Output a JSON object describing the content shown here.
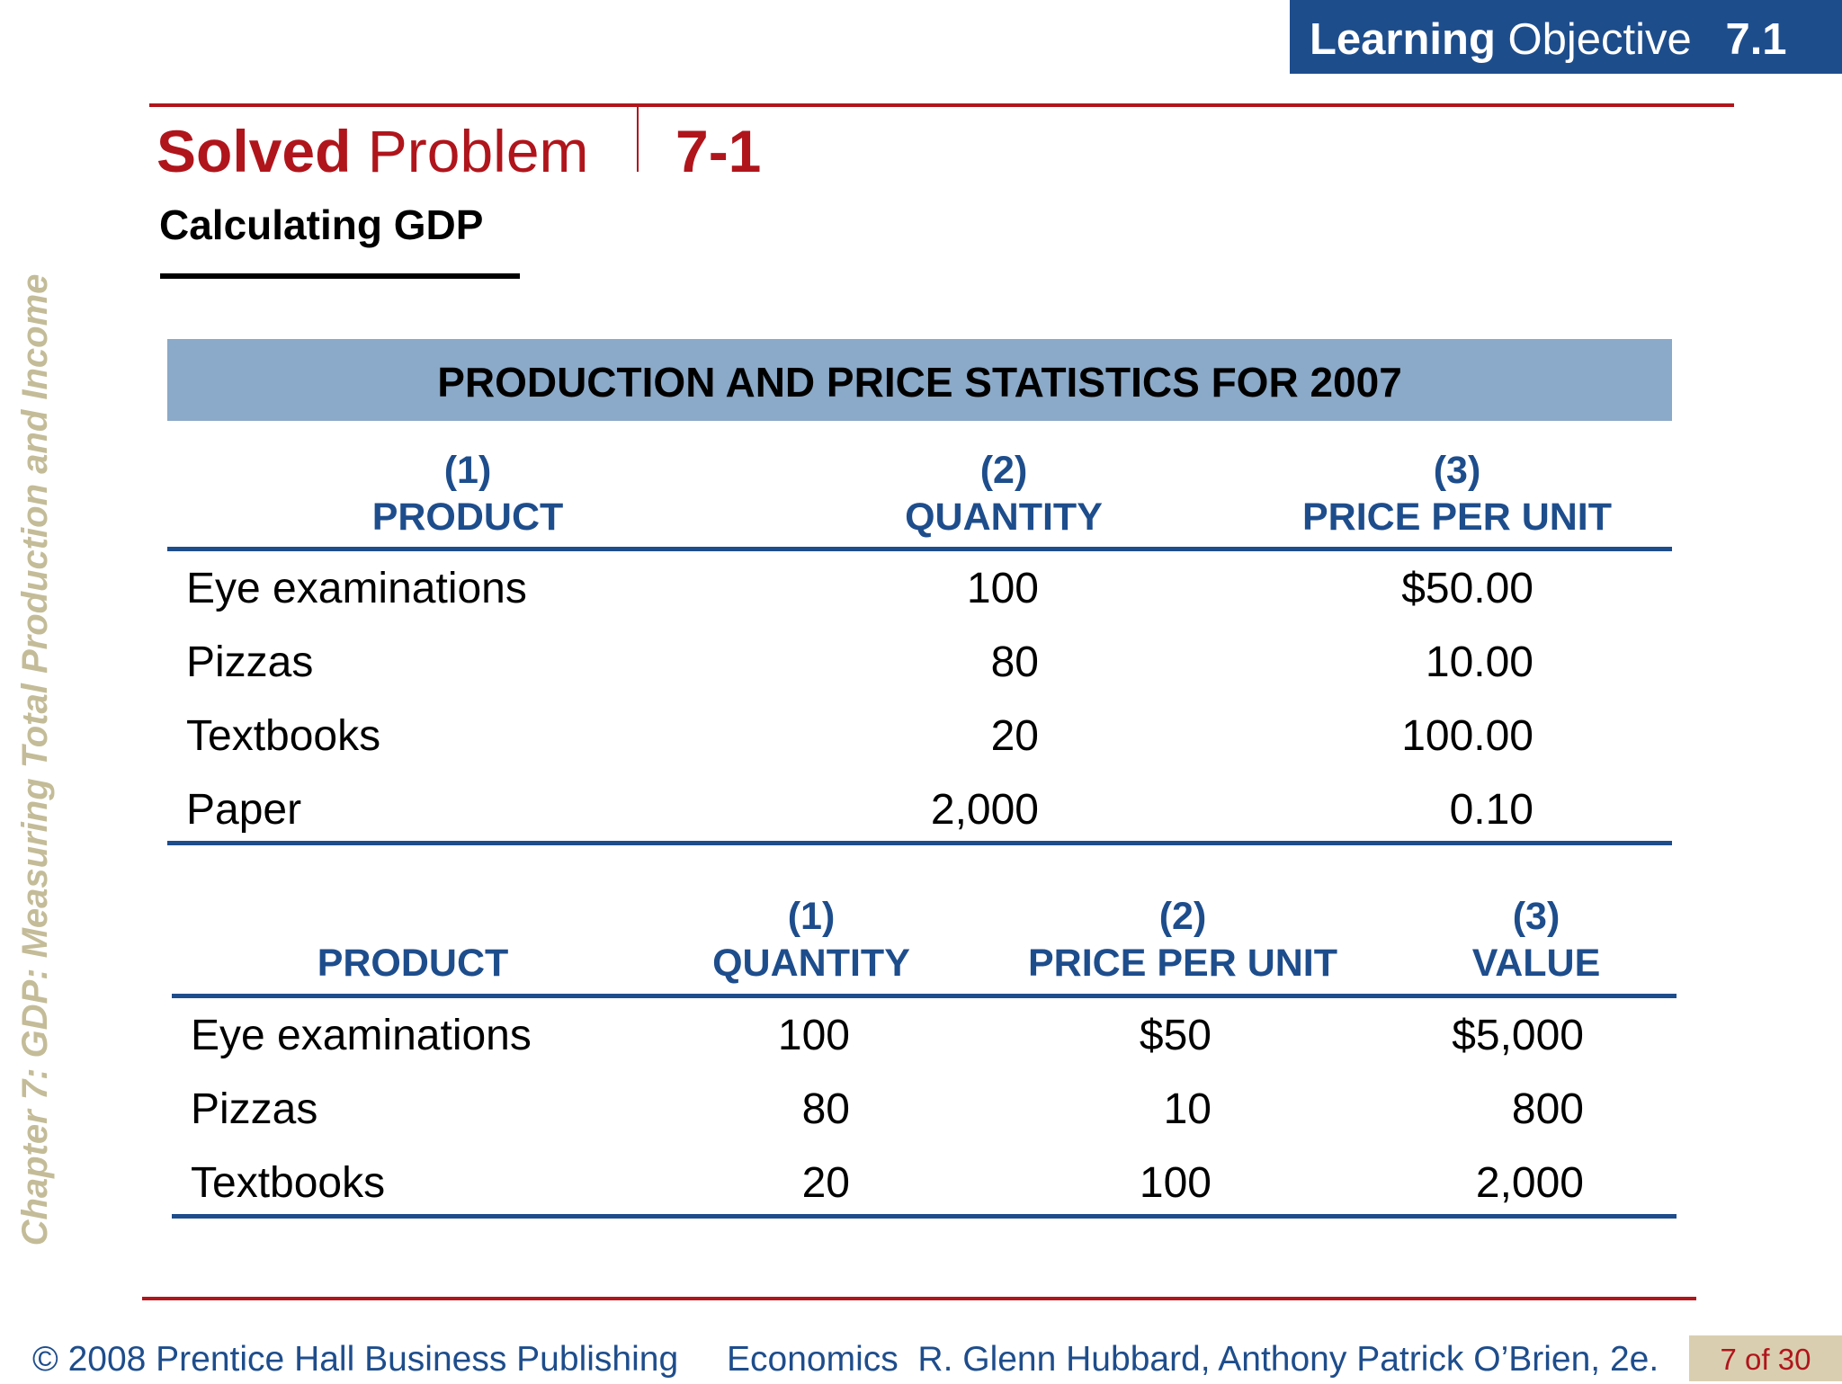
{
  "learning_objective": {
    "bold": "Learning",
    "regular": "Objective",
    "number": "7.1"
  },
  "title": {
    "bold": "Solved",
    "regular": "Problem",
    "number": "7-1"
  },
  "subtitle": "Calculating GDP",
  "sidebar": "Chapter 7:  GDP:  Measuring Total Production and Income",
  "table1": {
    "banner": "PRODUCTION AND PRICE STATISTICS FOR 2007",
    "headers": [
      {
        "num": "(1)",
        "label": "PRODUCT"
      },
      {
        "num": "(2)",
        "label": "QUANTITY"
      },
      {
        "num": "(3)",
        "label": "PRICE PER UNIT"
      }
    ],
    "rows": [
      {
        "product": "Eye examinations",
        "quantity": "100",
        "price": "$50.00"
      },
      {
        "product": "Pizzas",
        "quantity": "80",
        "price": "10.00"
      },
      {
        "product": "Textbooks",
        "quantity": "20",
        "price": "100.00"
      },
      {
        "product": "Paper",
        "quantity": "2,000",
        "price": "0.10"
      }
    ]
  },
  "table2": {
    "headers": [
      {
        "num": "",
        "label": "PRODUCT"
      },
      {
        "num": "(1)",
        "label": "QUANTITY"
      },
      {
        "num": "(2)",
        "label": "PRICE PER UNIT"
      },
      {
        "num": "(3)",
        "label": "VALUE"
      }
    ],
    "rows": [
      {
        "product": "Eye examinations",
        "quantity": "100",
        "price": "$50",
        "value": "$5,000"
      },
      {
        "product": "Pizzas",
        "quantity": "80",
        "price": "10",
        "value": "800"
      },
      {
        "product": "Textbooks",
        "quantity": "20",
        "price": "100",
        "value": "2,000"
      }
    ]
  },
  "footer": {
    "copyright": "© 2008 Prentice Hall Business Publishing",
    "book": "Economics  R. Glenn Hubbard, Anthony Patrick O’Brien, 2e.",
    "page": "7 of 30"
  },
  "colors": {
    "brand_red": "#b0151c",
    "header_blue": "#1e4d8c",
    "banner_blue": "#8ba9c8",
    "sidebar_tan": "#c4bc98",
    "page_tag_bg": "#d9cfb0"
  }
}
